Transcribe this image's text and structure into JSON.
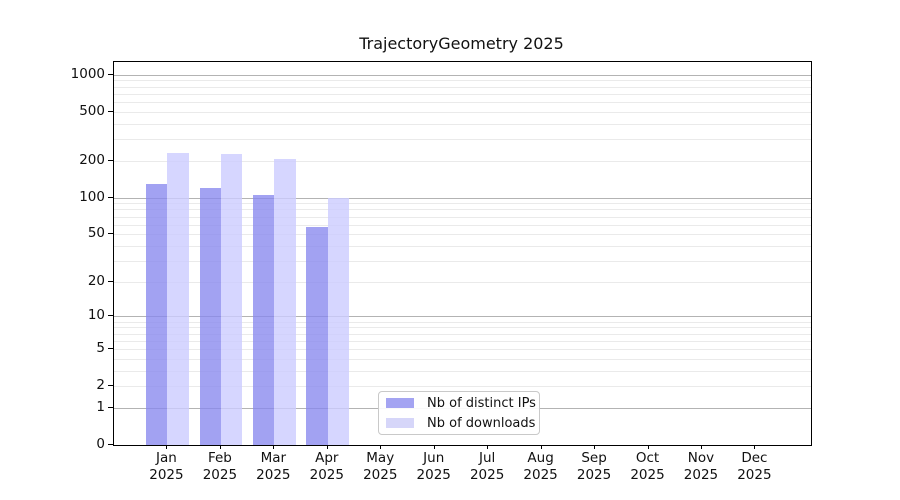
{
  "page": {
    "background": "#ffffff"
  },
  "chart_data": {
    "type": "bar",
    "title": "TrajectoryGeometry 2025",
    "year_label": "2025",
    "categories": [
      "Jan",
      "Feb",
      "Mar",
      "Apr",
      "May",
      "Jun",
      "Jul",
      "Aug",
      "Sep",
      "Oct",
      "Nov",
      "Dec"
    ],
    "series": [
      {
        "name": "Nb of distinct IPs",
        "color": "rgba(136,136,238,0.78)",
        "legend_color": "#a4a4f2",
        "values": [
          130,
          120,
          105,
          57,
          null,
          null,
          null,
          null,
          null,
          null,
          null,
          null
        ]
      },
      {
        "name": "Nb of downloads",
        "color": "rgba(204,204,255,0.80)",
        "legend_color": "#d6d6f9",
        "values": [
          230,
          225,
          205,
          100,
          null,
          null,
          null,
          null,
          null,
          null,
          null,
          null
        ]
      }
    ],
    "y_axis": {
      "scale": "log10(value+1)",
      "ticks": [
        1000,
        500,
        200,
        100,
        50,
        20,
        10,
        5,
        2,
        1,
        0
      ],
      "top_value": 1267,
      "gridlines_major": [
        1,
        10,
        100,
        1000
      ],
      "gridlines_minor": [
        2,
        3,
        4,
        5,
        6,
        7,
        8,
        9,
        20,
        30,
        40,
        50,
        60,
        70,
        80,
        90,
        200,
        300,
        400,
        500,
        600,
        700,
        800,
        900
      ]
    },
    "x_axis": {
      "tick_line1": [
        "Jan",
        "Feb",
        "Mar",
        "Apr",
        "May",
        "Jun",
        "Jul",
        "Aug",
        "Sep",
        "Oct",
        "Nov",
        "Dec"
      ],
      "tick_line2": "2025"
    },
    "grid": true,
    "legend_position": "inside lower-center"
  },
  "colors": {
    "major_grid": "#b3b3b3",
    "minor_grid": "#eaeaea",
    "axis": "#000000",
    "text": "#111111",
    "legend_border": "#c9c9c9"
  }
}
